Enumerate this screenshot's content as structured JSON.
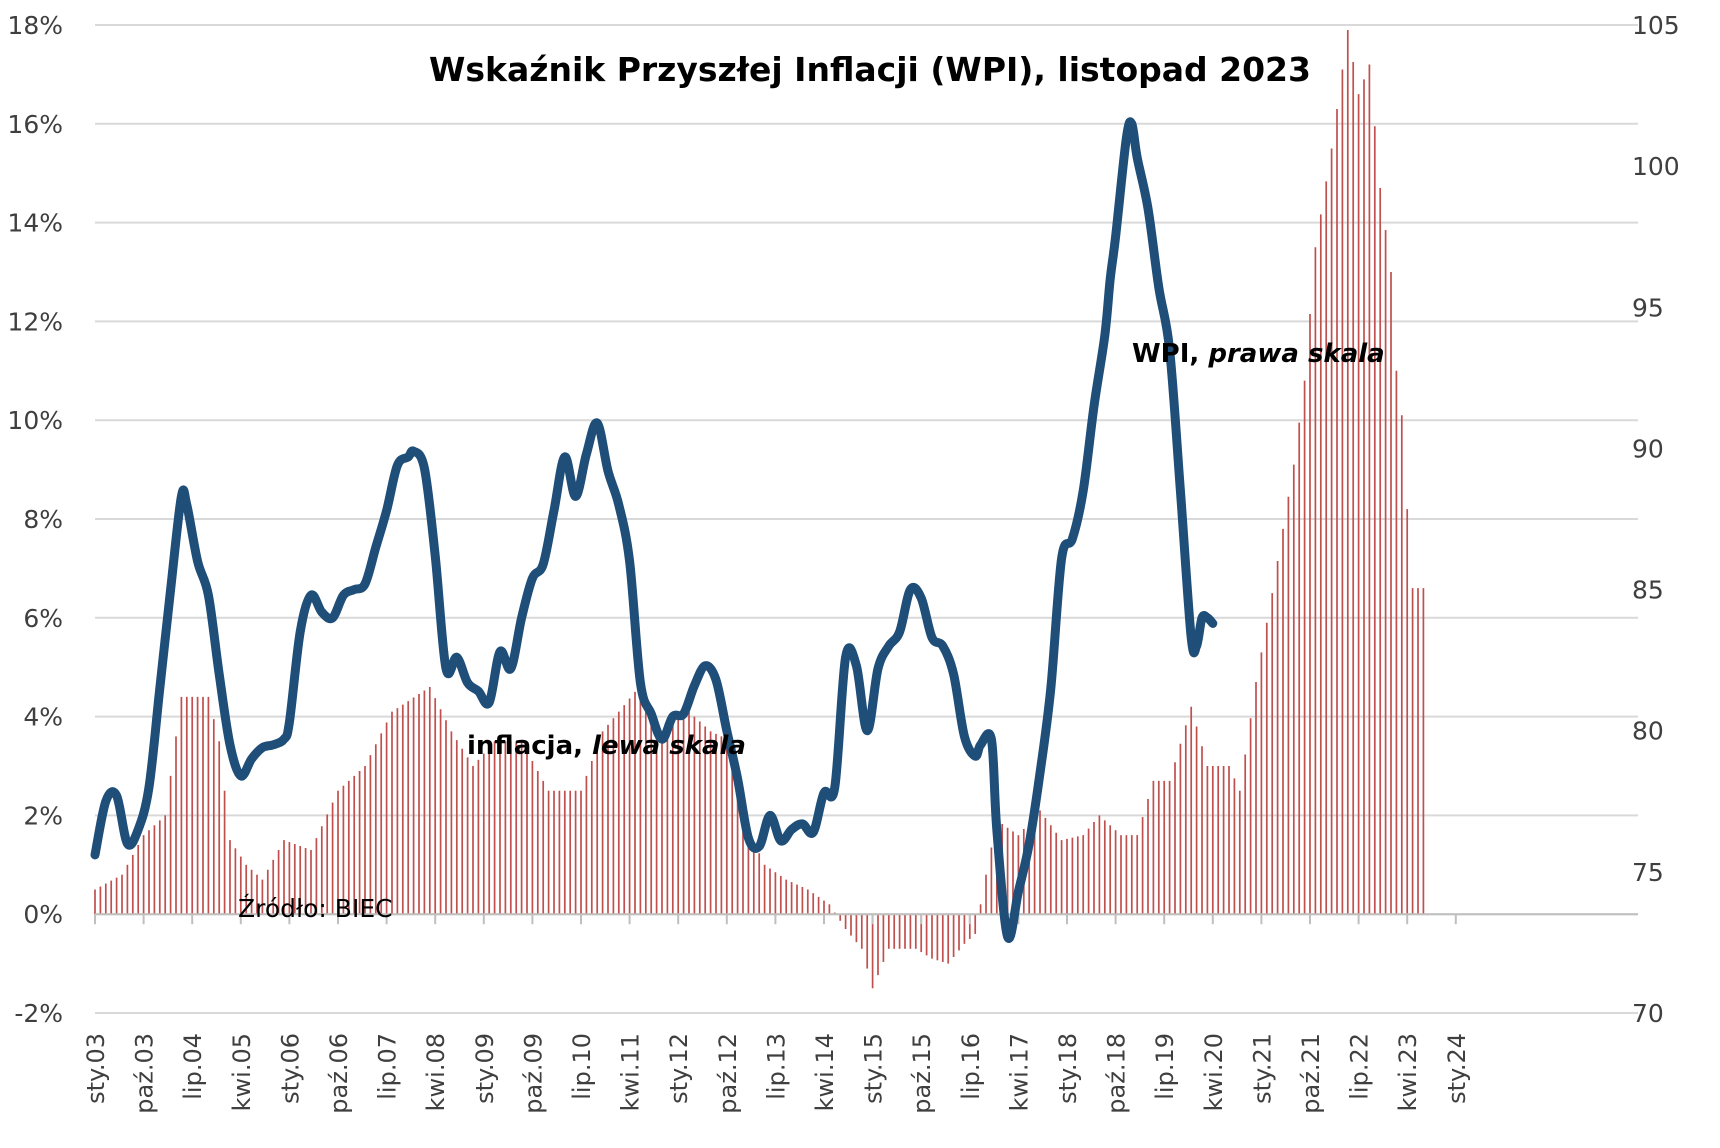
{
  "chart_data": {
    "type": "line",
    "title": "Wskaźnik Przyszłej Inflacji (WPI), listopad 2023",
    "left_axis": {
      "ticks": [
        "-2%",
        "0%",
        "2%",
        "4%",
        "6%",
        "8%",
        "10%",
        "12%",
        "14%",
        "16%",
        "18%"
      ],
      "range": [
        -2,
        18
      ]
    },
    "right_axis": {
      "ticks": [
        "70",
        "75",
        "80",
        "85",
        "90",
        "95",
        "100",
        "105"
      ],
      "range": [
        70,
        105
      ]
    },
    "x_ticks": [
      "sty.03",
      "paź.03",
      "lip.04",
      "kwi.05",
      "sty.06",
      "paź.06",
      "lip.07",
      "kwi.08",
      "sty.09",
      "paź.09",
      "lip.10",
      "kwi.11",
      "sty.12",
      "paź.12",
      "lip.13",
      "kwi.14",
      "sty.15",
      "paź.15",
      "lip.16",
      "kwi.17",
      "sty.18",
      "paź.18",
      "lip.19",
      "kwi.20",
      "sty.21",
      "paź.21",
      "lip.22",
      "kwi.23",
      "sty.24"
    ],
    "grid": true,
    "colors": {
      "inflation": "#c0504d",
      "wpi": "#1f4e79",
      "grid": "#d9d9d9"
    },
    "inflation_series": {
      "anchors": [
        [
          0,
          0.5
        ],
        [
          5,
          0.8
        ],
        [
          9,
          1.6
        ],
        [
          13,
          2.0
        ],
        [
          16,
          4.4
        ],
        [
          21,
          4.4
        ],
        [
          23,
          3.5
        ],
        [
          25,
          1.5
        ],
        [
          28,
          1.0
        ],
        [
          31,
          0.7
        ],
        [
          35,
          1.5
        ],
        [
          40,
          1.3
        ],
        [
          45,
          2.5
        ],
        [
          50,
          3.0
        ],
        [
          55,
          4.1
        ],
        [
          62,
          4.6
        ],
        [
          66,
          3.7
        ],
        [
          70,
          3.0
        ],
        [
          74,
          3.5
        ],
        [
          79,
          3.5
        ],
        [
          84,
          2.5
        ],
        [
          90,
          2.5
        ],
        [
          94,
          3.7
        ],
        [
          100,
          4.5
        ],
        [
          105,
          3.7
        ],
        [
          110,
          4.1
        ],
        [
          114,
          3.7
        ],
        [
          118,
          3.5
        ],
        [
          121,
          1.7
        ],
        [
          124,
          1.0
        ],
        [
          128,
          0.7
        ],
        [
          132,
          0.5
        ],
        [
          136,
          0.2
        ],
        [
          139,
          -0.3
        ],
        [
          142,
          -0.7
        ],
        [
          144,
          -1.5
        ],
        [
          147,
          -0.7
        ],
        [
          152,
          -0.7
        ],
        [
          155,
          -0.9
        ],
        [
          158,
          -1.0
        ],
        [
          161,
          -0.6
        ],
        [
          163,
          -0.4
        ],
        [
          165,
          0.8
        ],
        [
          167,
          1.9
        ],
        [
          171,
          1.6
        ],
        [
          175,
          2.1
        ],
        [
          179,
          1.5
        ],
        [
          183,
          1.6
        ],
        [
          186,
          2.0
        ],
        [
          190,
          1.6
        ],
        [
          193,
          1.6
        ],
        [
          196,
          2.7
        ],
        [
          199,
          2.7
        ],
        [
          203,
          4.2
        ],
        [
          206,
          3.0
        ],
        [
          210,
          3.0
        ],
        [
          212,
          2.5
        ],
        [
          215,
          4.7
        ],
        [
          218,
          6.5
        ],
        [
          222,
          9.1
        ],
        [
          224,
          10.8
        ],
        [
          226,
          13.5
        ],
        [
          229,
          15.5
        ],
        [
          232,
          17.9
        ],
        [
          234,
          16.6
        ],
        [
          236,
          17.2
        ],
        [
          238,
          14.7
        ],
        [
          240,
          13.0
        ],
        [
          241,
          11.0
        ],
        [
          242,
          10.1
        ],
        [
          243,
          8.2
        ],
        [
          244,
          6.6
        ],
        [
          246,
          6.6
        ]
      ],
      "range": [
        0,
        246
      ],
      "ylim": [
        -2,
        18
      ]
    },
    "wpi_series": {
      "points": [
        [
          0,
          75.6
        ],
        [
          2,
          77.5
        ],
        [
          4,
          77.7
        ],
        [
          6,
          76.0
        ],
        [
          8,
          76.5
        ],
        [
          10,
          78.0
        ],
        [
          12,
          81.5
        ],
        [
          14,
          85.0
        ],
        [
          16,
          88.3
        ],
        [
          17,
          88.0
        ],
        [
          19,
          86.0
        ],
        [
          21,
          84.8
        ],
        [
          23,
          82.0
        ],
        [
          25,
          79.5
        ],
        [
          27,
          78.4
        ],
        [
          29,
          79.0
        ],
        [
          31,
          79.4
        ],
        [
          33,
          79.5
        ],
        [
          35,
          79.7
        ],
        [
          36,
          80.3
        ],
        [
          38,
          83.5
        ],
        [
          40,
          84.8
        ],
        [
          42,
          84.2
        ],
        [
          44,
          84.0
        ],
        [
          46,
          84.8
        ],
        [
          48,
          85.0
        ],
        [
          50,
          85.2
        ],
        [
          52,
          86.5
        ],
        [
          54,
          87.8
        ],
        [
          56,
          89.4
        ],
        [
          58,
          89.7
        ],
        [
          59,
          89.9
        ],
        [
          61,
          89.3
        ],
        [
          63,
          86.2
        ],
        [
          65,
          82.2
        ],
        [
          67,
          82.6
        ],
        [
          69,
          81.7
        ],
        [
          71,
          81.4
        ],
        [
          73,
          81.0
        ],
        [
          75,
          82.8
        ],
        [
          77,
          82.2
        ],
        [
          79,
          84.0
        ],
        [
          81,
          85.4
        ],
        [
          83,
          85.9
        ],
        [
          85,
          87.8
        ],
        [
          87,
          89.7
        ],
        [
          89,
          88.3
        ],
        [
          91,
          89.8
        ],
        [
          93,
          90.9
        ],
        [
          95,
          89.2
        ],
        [
          97,
          88.0
        ],
        [
          99,
          86.0
        ],
        [
          101,
          81.7
        ],
        [
          103,
          80.6
        ],
        [
          105,
          79.7
        ],
        [
          107,
          80.5
        ],
        [
          109,
          80.6
        ],
        [
          111,
          81.6
        ],
        [
          113,
          82.3
        ],
        [
          115,
          81.8
        ],
        [
          117,
          80.0
        ],
        [
          119,
          78.3
        ],
        [
          121,
          76.2
        ],
        [
          123,
          75.9
        ],
        [
          125,
          77.0
        ],
        [
          127,
          76.1
        ],
        [
          129,
          76.5
        ],
        [
          131,
          76.7
        ],
        [
          133,
          76.4
        ],
        [
          135,
          77.8
        ],
        [
          137,
          78.0
        ],
        [
          139,
          82.6
        ],
        [
          141,
          82.3
        ],
        [
          143,
          80.0
        ],
        [
          145,
          82.2
        ],
        [
          147,
          83.0
        ],
        [
          149,
          83.5
        ],
        [
          151,
          85.0
        ],
        [
          153,
          84.7
        ],
        [
          155,
          83.3
        ],
        [
          157,
          83.0
        ],
        [
          159,
          82.0
        ],
        [
          161,
          79.8
        ],
        [
          163,
          79.1
        ],
        [
          164,
          79.5
        ],
        [
          166,
          79.7
        ],
        [
          167,
          76.5
        ],
        [
          169,
          72.7
        ],
        [
          171,
          74.3
        ],
        [
          173,
          76.0
        ],
        [
          175,
          78.5
        ],
        [
          177,
          81.5
        ],
        [
          179,
          86.1
        ],
        [
          181,
          86.8
        ],
        [
          183,
          88.5
        ],
        [
          185,
          91.5
        ],
        [
          187,
          94.0
        ],
        [
          188,
          96.0
        ],
        [
          189,
          97.5
        ],
        [
          191,
          101.0
        ],
        [
          192,
          101.5
        ],
        [
          193,
          100.3
        ],
        [
          195,
          98.5
        ],
        [
          197,
          95.7
        ],
        [
          199,
          93.5
        ],
        [
          201,
          88.5
        ],
        [
          203,
          83.3
        ],
        [
          204,
          83.0
        ],
        [
          205,
          84.0
        ],
        [
          206,
          84.0
        ],
        [
          207,
          83.8
        ]
      ],
      "ylim": [
        70,
        105
      ]
    },
    "annotations": {
      "wpi_label": "WPI, ",
      "wpi_label_italic": "prawa skala",
      "inflation_label": "inflacja, ",
      "inflation_label_italic": "lewa skala",
      "source": "Źródło: BIEC"
    }
  }
}
